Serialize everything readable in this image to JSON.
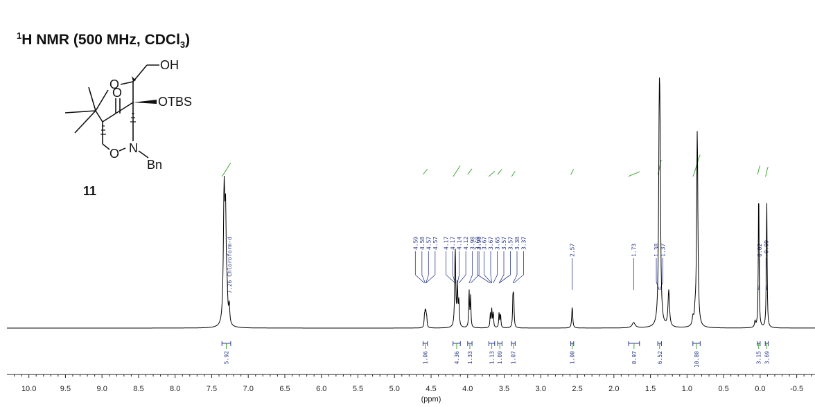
{
  "chart_data": {
    "type": "line",
    "title_prefix": "1",
    "title_main": "H NMR (500 MHz, CDCl",
    "title_sub": "3",
    "title_suffix": ")",
    "xlabel": "(ppm)",
    "x_range": [
      10.3,
      -0.75
    ],
    "x_ticks": [
      "10.0",
      "9.5",
      "9.0",
      "8.5",
      "8.0",
      "7.5",
      "7.0",
      "6.5",
      "6.0",
      "5.5",
      "5.0",
      "4.5",
      "4.0",
      "3.5",
      "3.0",
      "2.5",
      "2.0",
      "1.5",
      "1.0",
      "0.5",
      "0.0",
      "-0.5"
    ],
    "x_tick_values": [
      10.0,
      9.5,
      9.0,
      8.5,
      8.0,
      7.5,
      7.0,
      6.5,
      6.0,
      5.5,
      5.0,
      4.5,
      4.0,
      3.5,
      3.0,
      2.5,
      2.0,
      1.5,
      1.0,
      0.5,
      0.0,
      -0.5
    ],
    "peaks": [
      {
        "ppm": 7.33,
        "h": 0.86,
        "w": 0.012
      },
      {
        "ppm": 7.31,
        "h": 0.62,
        "w": 0.01
      },
      {
        "ppm": 7.29,
        "h": 0.16,
        "w": 0.01
      },
      {
        "ppm": 7.26,
        "h": 0.12,
        "w": 0.008
      },
      {
        "ppm": 4.59,
        "h": 0.07,
        "w": 0.006
      },
      {
        "ppm": 4.58,
        "h": 0.085,
        "w": 0.006
      },
      {
        "ppm": 4.57,
        "h": 0.075,
        "w": 0.006
      },
      {
        "ppm": 4.56,
        "h": 0.06,
        "w": 0.006
      },
      {
        "ppm": 4.17,
        "h": 0.52,
        "w": 0.008
      },
      {
        "ppm": 4.14,
        "h": 0.26,
        "w": 0.007
      },
      {
        "ppm": 4.12,
        "h": 0.16,
        "w": 0.007
      },
      {
        "ppm": 3.98,
        "h": 0.24,
        "w": 0.006
      },
      {
        "ppm": 3.96,
        "h": 0.2,
        "w": 0.006
      },
      {
        "ppm": 3.69,
        "h": 0.09,
        "w": 0.006
      },
      {
        "ppm": 3.67,
        "h": 0.12,
        "w": 0.006
      },
      {
        "ppm": 3.65,
        "h": 0.1,
        "w": 0.006
      },
      {
        "ppm": 3.57,
        "h": 0.1,
        "w": 0.006
      },
      {
        "ppm": 3.55,
        "h": 0.09,
        "w": 0.006
      },
      {
        "ppm": 3.38,
        "h": 0.2,
        "w": 0.006
      },
      {
        "ppm": 3.37,
        "h": 0.18,
        "w": 0.006
      },
      {
        "ppm": 2.57,
        "h": 0.14,
        "w": 0.008
      },
      {
        "ppm": 1.73,
        "h": 0.035,
        "w": 0.025
      },
      {
        "ppm": 1.38,
        "h": 1.12,
        "w": 0.01
      },
      {
        "ppm": 1.37,
        "h": 0.92,
        "w": 0.01
      },
      {
        "ppm": 1.25,
        "h": 0.24,
        "w": 0.012
      },
      {
        "ppm": 0.92,
        "h": 0.05,
        "w": 0.01
      },
      {
        "ppm": 0.89,
        "h": 0.06,
        "w": 0.01
      },
      {
        "ppm": 0.86,
        "h": 1.3,
        "w": 0.01
      },
      {
        "ppm": 0.07,
        "h": 0.04,
        "w": 0.008
      },
      {
        "ppm": 0.02,
        "h": 0.94,
        "w": 0.006
      },
      {
        "ppm": -0.09,
        "h": 0.86,
        "w": 0.006
      }
    ],
    "peak_labels": [
      {
        "group": [
          4.59,
          4.58,
          4.57,
          4.57
        ],
        "texts": [
          "4.59",
          "4.58",
          "4.57",
          "4.57"
        ],
        "anchor_ppm": 4.58
      },
      {
        "group": [
          4.17,
          4.17,
          4.14,
          4.12,
          3.98,
          3.96
        ],
        "texts": [
          "4.17",
          "4.17",
          "4.14",
          "4.12",
          "3.98",
          "3.96"
        ],
        "anchor_ppm": 4.07
      },
      {
        "group": [
          3.69,
          3.67,
          3.67,
          3.65,
          3.57,
          3.57,
          3.38,
          3.37
        ],
        "texts": [
          "3.69",
          "3.67",
          "3.67",
          "3.65",
          "3.57",
          "3.57",
          "3.38",
          "3.37"
        ],
        "anchor_ppm": 3.55
      },
      {
        "group": [
          2.57
        ],
        "texts": [
          "2.57"
        ],
        "anchor_ppm": 2.57
      },
      {
        "group": [
          1.73
        ],
        "texts": [
          "1.73"
        ],
        "anchor_ppm": 1.73
      },
      {
        "group": [
          1.38,
          1.37
        ],
        "texts": [
          "1.38",
          "1.37"
        ],
        "anchor_ppm": 1.375
      },
      {
        "group": [
          0.02,
          -0.09
        ],
        "texts": [
          "0.02",
          "-0.09"
        ],
        "anchor_ppm": -0.035
      }
    ],
    "solvent_label": {
      "ppm": 7.26,
      "text": "7.26 Chloroform-d"
    },
    "integrals": [
      {
        "from": 7.36,
        "to": 7.24,
        "value": "5.92"
      },
      {
        "from": 4.61,
        "to": 4.55,
        "value": "1.06"
      },
      {
        "from": 4.2,
        "to": 4.1,
        "value": "4.36"
      },
      {
        "from": 4.0,
        "to": 3.94,
        "value": "1.33"
      },
      {
        "from": 3.71,
        "to": 3.63,
        "value": "1.13"
      },
      {
        "from": 3.59,
        "to": 3.53,
        "value": "1.09"
      },
      {
        "from": 3.4,
        "to": 3.35,
        "value": "1.07"
      },
      {
        "from": 2.59,
        "to": 2.55,
        "value": "1.00"
      },
      {
        "from": 1.8,
        "to": 1.65,
        "value": "0.97"
      },
      {
        "from": 1.4,
        "to": 1.35,
        "value": "6.52"
      },
      {
        "from": 0.92,
        "to": 0.82,
        "value": "10.80"
      },
      {
        "from": 0.04,
        "to": 0.0,
        "value": "3.15"
      },
      {
        "from": -0.07,
        "to": -0.11,
        "value": "3.69"
      }
    ]
  },
  "compound": {
    "oh": "OH",
    "otbs": "OTBS",
    "o_ring": "O",
    "o_carbonyl": "O",
    "n": "N",
    "o_lower": "O",
    "bn": "Bn",
    "number": "11"
  },
  "colors": {
    "spectrum": "#000000",
    "integral_curve": "#3fa535",
    "label_blue": "#2b3a8a"
  }
}
